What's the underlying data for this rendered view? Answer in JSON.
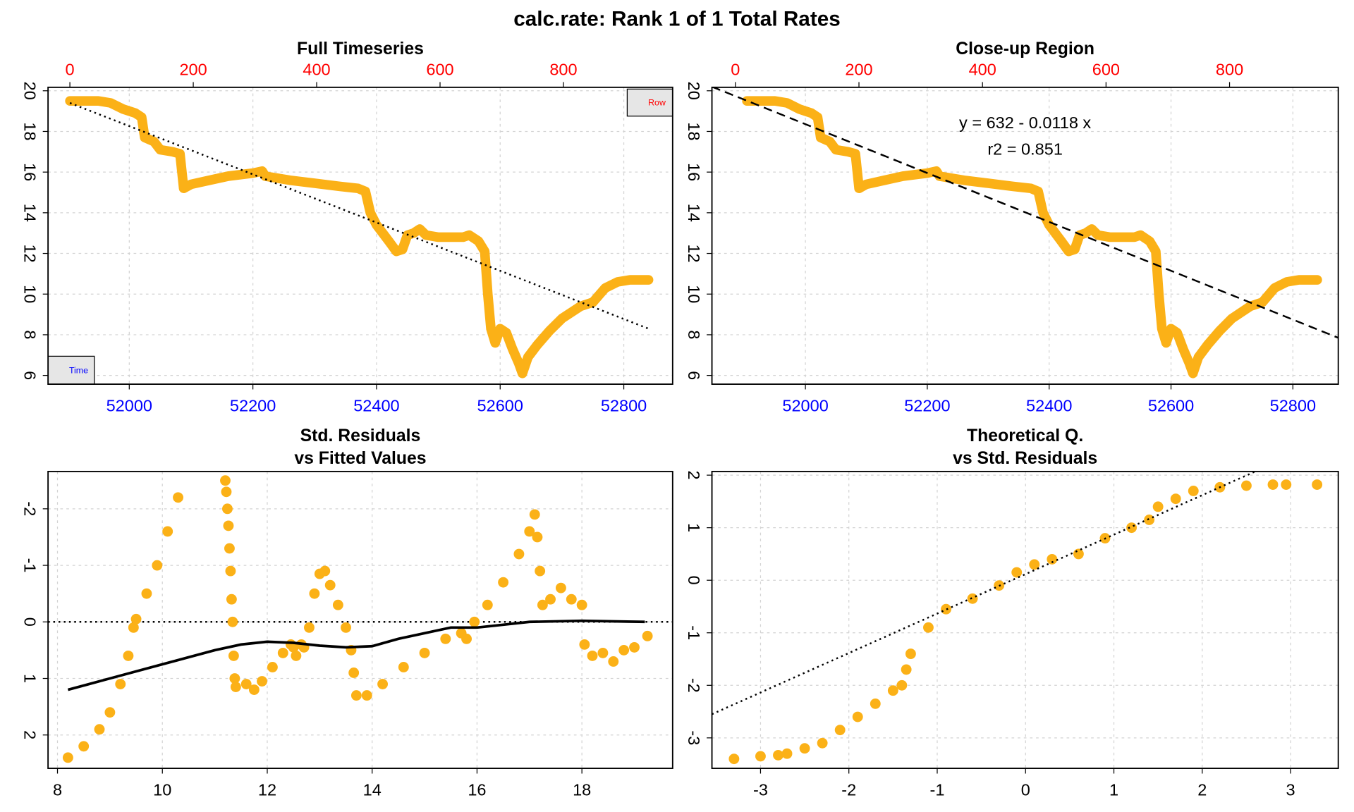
{
  "title": "calc.rate: Rank 1 of 1 Total Rates",
  "chart_data": [
    {
      "type": "line",
      "title": "Full Timeseries",
      "color": "#fbb117",
      "x": [
        51904,
        51950,
        51970,
        51990,
        52010,
        52020,
        52025,
        52040,
        52050,
        52070,
        52082,
        52088,
        52100,
        52130,
        52160,
        52200,
        52215,
        52220,
        52260,
        52300,
        52340,
        52370,
        52382,
        52390,
        52400,
        52420,
        52432,
        52442,
        52450,
        52460,
        52470,
        52480,
        52500,
        52540,
        52550,
        52565,
        52575,
        52580,
        52585,
        52592,
        52600,
        52610,
        52620,
        52630,
        52636,
        52645,
        52660,
        52680,
        52700,
        52730,
        52750,
        52770,
        52790,
        52810,
        52840
      ],
      "y": [
        19.5,
        19.5,
        19.4,
        19.1,
        18.9,
        18.7,
        17.7,
        17.5,
        17.1,
        17.0,
        16.9,
        15.2,
        15.4,
        15.6,
        15.8,
        15.95,
        16.05,
        15.8,
        15.6,
        15.45,
        15.3,
        15.2,
        15.05,
        14.0,
        13.4,
        12.6,
        12.1,
        12.2,
        12.9,
        13.0,
        13.2,
        12.9,
        12.8,
        12.8,
        12.9,
        12.6,
        12.1,
        10.0,
        8.3,
        7.6,
        8.3,
        8.1,
        7.3,
        6.6,
        6.1,
        6.9,
        7.5,
        8.2,
        8.8,
        9.4,
        9.6,
        10.3,
        10.6,
        10.7,
        10.7
      ],
      "xlim": [
        51868.6,
        52879
      ],
      "xticks": [
        52000,
        52200,
        52400,
        52600,
        52800
      ],
      "x_tick_color": "#0000ff",
      "x2lim": [
        -35.4,
        977
      ],
      "x2ticks": [
        0,
        200,
        400,
        600,
        800
      ],
      "x2_tick_color": "#ff0000",
      "ylim": [
        5.57,
        20.17
      ],
      "yticks": [
        6,
        8,
        10,
        12,
        14,
        16,
        18,
        20
      ],
      "grid": true,
      "fit_line": {
        "x": [
          51904,
          52840
        ],
        "y": [
          19.4,
          8.3
        ],
        "dash": "dotted"
      },
      "axis_tags": {
        "x2": "Row",
        "x": "Time"
      }
    },
    {
      "type": "line",
      "title": "Close-up Region",
      "color": "#fbb117",
      "x": [
        51904,
        51950,
        51970,
        51990,
        52010,
        52020,
        52025,
        52040,
        52050,
        52070,
        52082,
        52088,
        52100,
        52130,
        52160,
        52200,
        52215,
        52220,
        52260,
        52300,
        52340,
        52370,
        52382,
        52390,
        52400,
        52420,
        52432,
        52442,
        52450,
        52460,
        52470,
        52480,
        52500,
        52540,
        52550,
        52565,
        52575,
        52580,
        52585,
        52592,
        52600,
        52610,
        52620,
        52630,
        52636,
        52645,
        52660,
        52680,
        52700,
        52730,
        52750,
        52770,
        52790,
        52810,
        52840
      ],
      "y": [
        19.5,
        19.5,
        19.4,
        19.1,
        18.9,
        18.7,
        17.7,
        17.5,
        17.1,
        17.0,
        16.9,
        15.2,
        15.4,
        15.6,
        15.8,
        15.95,
        16.05,
        15.8,
        15.6,
        15.45,
        15.3,
        15.2,
        15.05,
        14.0,
        13.4,
        12.6,
        12.1,
        12.2,
        12.9,
        13.0,
        13.2,
        12.9,
        12.8,
        12.8,
        12.9,
        12.6,
        12.1,
        10.0,
        8.3,
        7.6,
        8.3,
        8.1,
        7.3,
        6.6,
        6.1,
        6.9,
        7.5,
        8.2,
        8.8,
        9.4,
        9.6,
        10.3,
        10.6,
        10.7,
        10.7
      ],
      "xlim": [
        51846.6,
        52874.5
      ],
      "xticks": [
        52000,
        52200,
        52400,
        52600,
        52800
      ],
      "x_tick_color": "#0000ff",
      "x2lim": [
        -38,
        976
      ],
      "x2ticks": [
        0,
        200,
        400,
        600,
        800
      ],
      "x2_tick_color": "#ff0000",
      "ylim": [
        5.57,
        20.17
      ],
      "yticks": [
        6,
        8,
        10,
        12,
        14,
        16,
        18,
        20
      ],
      "grid": true,
      "fit_line": {
        "x": [
          51846.6,
          52874.5
        ],
        "y": [
          20.2,
          7.85
        ],
        "dash": "dashed"
      },
      "annotations": [
        "y = 632 - 0.0118 x",
        "r2 = 0.851"
      ]
    },
    {
      "type": "scatter",
      "title": [
        "Std. Residuals",
        "vs Fitted Values"
      ],
      "color": "#fbb117",
      "x": [
        8.2,
        8.5,
        8.8,
        9.0,
        9.2,
        9.35,
        9.45,
        9.5,
        9.7,
        9.9,
        10.1,
        10.3,
        11.2,
        11.22,
        11.24,
        11.26,
        11.28,
        11.3,
        11.32,
        11.34,
        11.36,
        11.38,
        11.4,
        11.6,
        11.75,
        11.9,
        12.1,
        12.3,
        12.45,
        12.5,
        12.55,
        12.65,
        12.7,
        12.8,
        12.9,
        13.0,
        13.1,
        13.2,
        13.35,
        13.5,
        13.6,
        13.65,
        13.7,
        13.9,
        14.2,
        14.6,
        15.0,
        15.4,
        15.7,
        15.8,
        15.95,
        16.2,
        16.5,
        16.8,
        17.0,
        17.1,
        17.15,
        17.2,
        17.25,
        17.4,
        17.6,
        17.8,
        18.0,
        18.05,
        18.2,
        18.4,
        18.6,
        18.8,
        19.0,
        19.25
      ],
      "y": [
        2.4,
        2.2,
        1.9,
        1.6,
        1.1,
        0.6,
        0.1,
        -0.05,
        -0.5,
        -1.0,
        -1.6,
        -2.2,
        -2.5,
        -2.3,
        -2.0,
        -1.7,
        -1.3,
        -0.9,
        -0.4,
        0.0,
        0.6,
        1.0,
        1.15,
        1.1,
        1.2,
        1.05,
        0.8,
        0.55,
        0.4,
        0.45,
        0.6,
        0.4,
        0.45,
        0.1,
        -0.5,
        -0.85,
        -0.9,
        -0.65,
        -0.3,
        0.1,
        0.5,
        0.9,
        1.3,
        1.3,
        1.1,
        0.8,
        0.55,
        0.3,
        0.2,
        0.3,
        0.0,
        -0.3,
        -0.7,
        -1.2,
        -1.6,
        -1.9,
        -1.5,
        -0.9,
        -0.3,
        -0.4,
        -0.6,
        -0.4,
        -0.3,
        0.4,
        0.6,
        0.55,
        0.7,
        0.5,
        0.45,
        0.25
      ],
      "xlim": [
        7.82,
        19.73
      ],
      "xticks": [
        8,
        10,
        12,
        14,
        16,
        18
      ],
      "ylim": [
        2.59,
        -2.66
      ],
      "yticks": [
        -2,
        -1,
        0,
        1,
        2
      ],
      "grid": true,
      "hline": 0,
      "smooth": {
        "x": [
          8.2,
          9,
          10,
          11,
          11.5,
          12,
          12.5,
          13,
          13.5,
          14,
          14.5,
          15,
          15.5,
          16,
          16.5,
          17,
          18,
          19.2
        ],
        "y": [
          1.2,
          1.0,
          0.75,
          0.5,
          0.4,
          0.35,
          0.37,
          0.42,
          0.45,
          0.43,
          0.3,
          0.2,
          0.1,
          0.1,
          0.05,
          0.0,
          -0.02,
          0.0
        ],
        "color": "#000000"
      }
    },
    {
      "type": "scatter",
      "title": [
        "Theoretical Q.",
        "vs Std. Residuals"
      ],
      "color": "#fbb117",
      "x": [
        -3.3,
        -3.0,
        -2.8,
        -2.7,
        -2.5,
        -2.3,
        -2.1,
        -1.9,
        -1.7,
        -1.5,
        -1.4,
        -1.35,
        -1.3,
        -1.1,
        -0.9,
        -0.6,
        -0.3,
        -0.1,
        0.1,
        0.3,
        0.6,
        0.9,
        1.2,
        1.4,
        1.5,
        1.7,
        1.9,
        2.2,
        2.5,
        2.8,
        2.95,
        3.3
      ],
      "y": [
        -3.4,
        -3.35,
        -3.33,
        -3.3,
        -3.2,
        -3.1,
        -2.85,
        -2.6,
        -2.35,
        -2.1,
        -2.0,
        -1.7,
        -1.4,
        -0.9,
        -0.55,
        -0.35,
        -0.1,
        0.15,
        0.3,
        0.4,
        0.5,
        0.8,
        1.0,
        1.15,
        1.4,
        1.55,
        1.7,
        1.77,
        1.8,
        1.82,
        1.82,
        1.82
      ],
      "xlim": [
        -3.55,
        3.54
      ],
      "xticks": [
        -3,
        -2,
        -1,
        0,
        1,
        2,
        3
      ],
      "ylim": [
        -3.58,
        2.07
      ],
      "yticks": [
        -3,
        -2,
        -1,
        0,
        1,
        2
      ],
      "grid": true,
      "fit_line": {
        "x": [
          -3.55,
          2.6
        ],
        "y": [
          -2.55,
          2.07
        ],
        "dash": "dotted"
      }
    }
  ]
}
